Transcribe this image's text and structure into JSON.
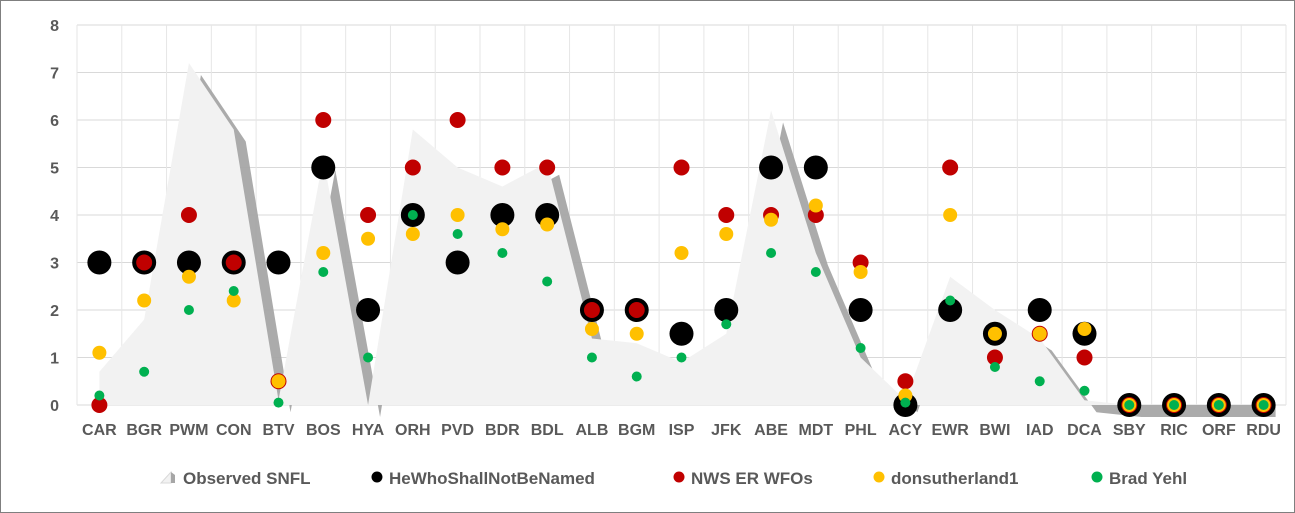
{
  "chart_data": {
    "type": "scatter",
    "categories": [
      "CAR",
      "BGR",
      "PWM",
      "CON",
      "BTV",
      "BOS",
      "HYA",
      "ORH",
      "PVD",
      "BDR",
      "BDL",
      "ALB",
      "BGM",
      "ISP",
      "JFK",
      "ABE",
      "MDT",
      "PHL",
      "ACY",
      "EWR",
      "BWI",
      "IAD",
      "DCA",
      "SBY",
      "RIC",
      "ORF",
      "RDU"
    ],
    "ylim": [
      0,
      8
    ],
    "yticks": [
      0,
      1,
      2,
      3,
      4,
      5,
      6,
      7,
      8
    ],
    "grid": true,
    "legend_position": "bottom",
    "series": [
      {
        "name": "Observed SNFL",
        "kind": "area",
        "color": "#f2f2f2",
        "shadow": "#a6a6a6",
        "values": [
          0.7,
          1.8,
          7.2,
          5.8,
          0.1,
          5.2,
          0.0,
          5.8,
          5.0,
          4.6,
          5.1,
          1.4,
          1.3,
          0.9,
          1.5,
          6.2,
          3.2,
          1.0,
          0.1,
          2.7,
          2.0,
          1.4,
          0.1,
          0,
          0,
          0,
          0
        ]
      },
      {
        "name": "HeWhoShallNotBeNamed",
        "kind": "marker",
        "color": "#000000",
        "values": [
          3,
          3,
          3,
          3,
          3,
          5,
          2,
          4,
          3,
          4,
          4,
          2,
          2,
          1.5,
          2,
          5,
          5,
          2,
          0,
          2,
          1.5,
          2,
          1.5,
          0,
          0,
          0,
          0
        ]
      },
      {
        "name": "NWS ER WFOs",
        "kind": "marker",
        "color": "#c00000",
        "values": [
          0,
          3,
          4,
          3,
          0.5,
          6,
          4,
          5,
          6,
          5,
          5,
          2,
          2,
          5,
          4,
          4,
          4,
          3,
          0.5,
          5,
          1,
          1.5,
          1,
          0,
          0,
          0,
          0
        ]
      },
      {
        "name": "donsutherland1",
        "kind": "marker",
        "color": "#ffc000",
        "values": [
          1.1,
          2.2,
          2.7,
          2.2,
          0.5,
          3.2,
          3.5,
          3.6,
          4,
          3.7,
          3.8,
          1.6,
          1.5,
          3.2,
          3.6,
          3.9,
          4.2,
          2.8,
          0.2,
          4,
          1.5,
          1.5,
          1.6,
          0,
          0,
          0,
          0
        ]
      },
      {
        "name": "Brad Yehl",
        "kind": "marker",
        "color": "#00b050",
        "values": [
          0.2,
          0.7,
          2,
          2.4,
          0.05,
          2.8,
          1,
          4,
          3.6,
          3.2,
          2.6,
          1,
          0.6,
          1,
          1.7,
          3.2,
          2.8,
          1.2,
          0.05,
          2.2,
          0.8,
          0.5,
          0.3,
          0,
          0,
          0,
          0
        ]
      }
    ]
  }
}
